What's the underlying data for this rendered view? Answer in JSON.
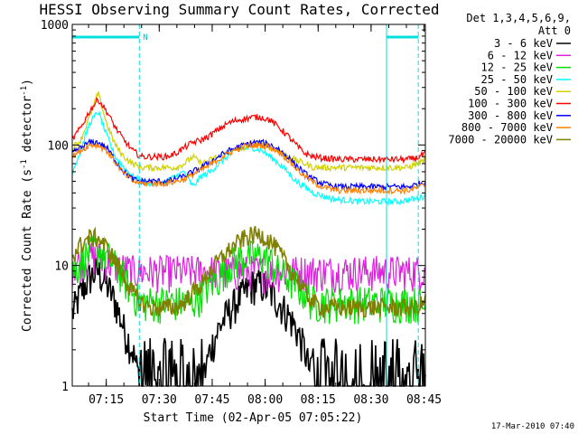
{
  "chart_data": {
    "type": "line",
    "title": "HESSI Observing Summary Count Rates, Corrected",
    "xlabel": "Start Time (02-Apr-05 07:05:22)",
    "ylabel_main": "Corrected Count Rate (s",
    "ylabel_exp1": "-1",
    "ylabel_mid": " detector",
    "ylabel_exp2": "-1",
    "ylabel_end": ")",
    "yscale": "log",
    "ylim": [
      1,
      1000
    ],
    "xlim_minutes": [
      0,
      100
    ],
    "x_tick_labels": [
      "07:15",
      "07:30",
      "07:45",
      "08:00",
      "08:15",
      "08:30",
      "08:45"
    ],
    "y_tick_labels": [
      "1",
      "10",
      "100",
      "1000"
    ],
    "legend_header": [
      "Det 1,3,4,5,6,9,",
      "Att 0"
    ],
    "timestamp": "17-Mar-2010 07:40",
    "flag_label": "N",
    "night_bars": [
      {
        "start": 0,
        "end": 19
      },
      {
        "start": 89,
        "end": 98
      }
    ],
    "series": [
      {
        "name": "3 - 6 keV",
        "color": "#000000",
        "values": [
          4,
          6,
          8,
          9,
          7,
          5,
          3,
          2,
          1,
          1,
          1,
          1,
          1,
          1,
          1,
          1,
          2,
          3,
          4,
          5,
          6,
          7,
          7,
          6,
          5,
          4,
          3,
          2,
          1,
          1,
          1,
          1,
          1,
          1,
          1,
          1,
          1,
          1,
          1,
          1,
          1,
          1
        ]
      },
      {
        "name": "6 - 12 keV",
        "color": "#e020e0",
        "values": [
          10,
          11,
          12,
          12,
          11,
          10,
          9.5,
          9,
          9,
          9,
          9,
          9,
          9,
          9,
          9,
          9,
          9,
          9,
          9,
          9,
          9,
          9,
          9,
          9,
          9,
          9,
          9,
          9,
          9,
          9,
          9,
          9,
          9,
          9,
          9,
          9,
          9,
          9,
          9,
          9,
          9,
          9.5
        ]
      },
      {
        "name": "12 - 25 keV",
        "color": "#00e000",
        "values": [
          9,
          11,
          13,
          14,
          12,
          10,
          8,
          6,
          5,
          5,
          5,
          5,
          5,
          5,
          5,
          6,
          7,
          8,
          10,
          11,
          12,
          12,
          12,
          11,
          9,
          8,
          7,
          6,
          5,
          5,
          5,
          5,
          5,
          5,
          5,
          5,
          5,
          5,
          5,
          5,
          5,
          4.5
        ]
      },
      {
        "name": "25 - 50 keV",
        "color": "#00ffff",
        "values": [
          60,
          90,
          150,
          190,
          120,
          80,
          65,
          55,
          50,
          48,
          48,
          50,
          55,
          60,
          45,
          55,
          60,
          70,
          80,
          90,
          95,
          95,
          90,
          80,
          70,
          60,
          50,
          45,
          40,
          38,
          36,
          35,
          35,
          34,
          34,
          34,
          34,
          34,
          34,
          35,
          36,
          38
        ]
      },
      {
        "name": "50 - 100 keV",
        "color": "#d0d000",
        "values": [
          95,
          110,
          170,
          270,
          150,
          100,
          80,
          70,
          65,
          65,
          65,
          65,
          65,
          70,
          80,
          70,
          75,
          80,
          85,
          90,
          95,
          100,
          100,
          95,
          90,
          80,
          75,
          70,
          65,
          65,
          65,
          65,
          65,
          65,
          65,
          65,
          65,
          65,
          65,
          65,
          70,
          75
        ]
      },
      {
        "name": "100 - 300 keV",
        "color": "#ff0000",
        "values": [
          110,
          140,
          190,
          240,
          190,
          140,
          110,
          90,
          80,
          80,
          80,
          80,
          85,
          95,
          105,
          110,
          120,
          135,
          150,
          160,
          165,
          170,
          170,
          160,
          140,
          120,
          100,
          85,
          80,
          78,
          77,
          76,
          76,
          76,
          76,
          76,
          76,
          76,
          76,
          76,
          78,
          85
        ]
      },
      {
        "name": "300 - 800 keV",
        "color": "#0000ff",
        "values": [
          85,
          95,
          105,
          105,
          95,
          75,
          60,
          52,
          50,
          50,
          50,
          50,
          52,
          55,
          60,
          65,
          72,
          80,
          88,
          95,
          100,
          105,
          105,
          100,
          92,
          80,
          68,
          58,
          52,
          48,
          46,
          45,
          45,
          45,
          45,
          45,
          45,
          45,
          45,
          45,
          47,
          50
        ]
      },
      {
        "name": "800 - 7000 keV",
        "color": "#ff8000",
        "values": [
          80,
          90,
          100,
          100,
          90,
          72,
          58,
          50,
          48,
          48,
          48,
          48,
          50,
          52,
          57,
          62,
          68,
          76,
          84,
          92,
          97,
          100,
          100,
          96,
          88,
          76,
          64,
          55,
          49,
          45,
          43,
          42,
          42,
          42,
          42,
          42,
          42,
          42,
          42,
          42,
          44,
          47
        ]
      },
      {
        "name": "7000 - 20000 keV",
        "color": "#808000",
        "values": [
          12,
          15,
          17,
          17,
          14,
          11,
          8,
          6,
          5,
          4.5,
          4.5,
          4.5,
          4.5,
          5,
          6,
          7,
          9,
          11,
          13,
          15,
          17,
          18,
          18,
          16,
          13,
          10,
          8,
          6,
          5,
          4.5,
          4.5,
          4.5,
          4.5,
          4.5,
          4.5,
          4.5,
          4.5,
          4.5,
          4.5,
          4.5,
          4.5,
          5
        ]
      }
    ]
  }
}
